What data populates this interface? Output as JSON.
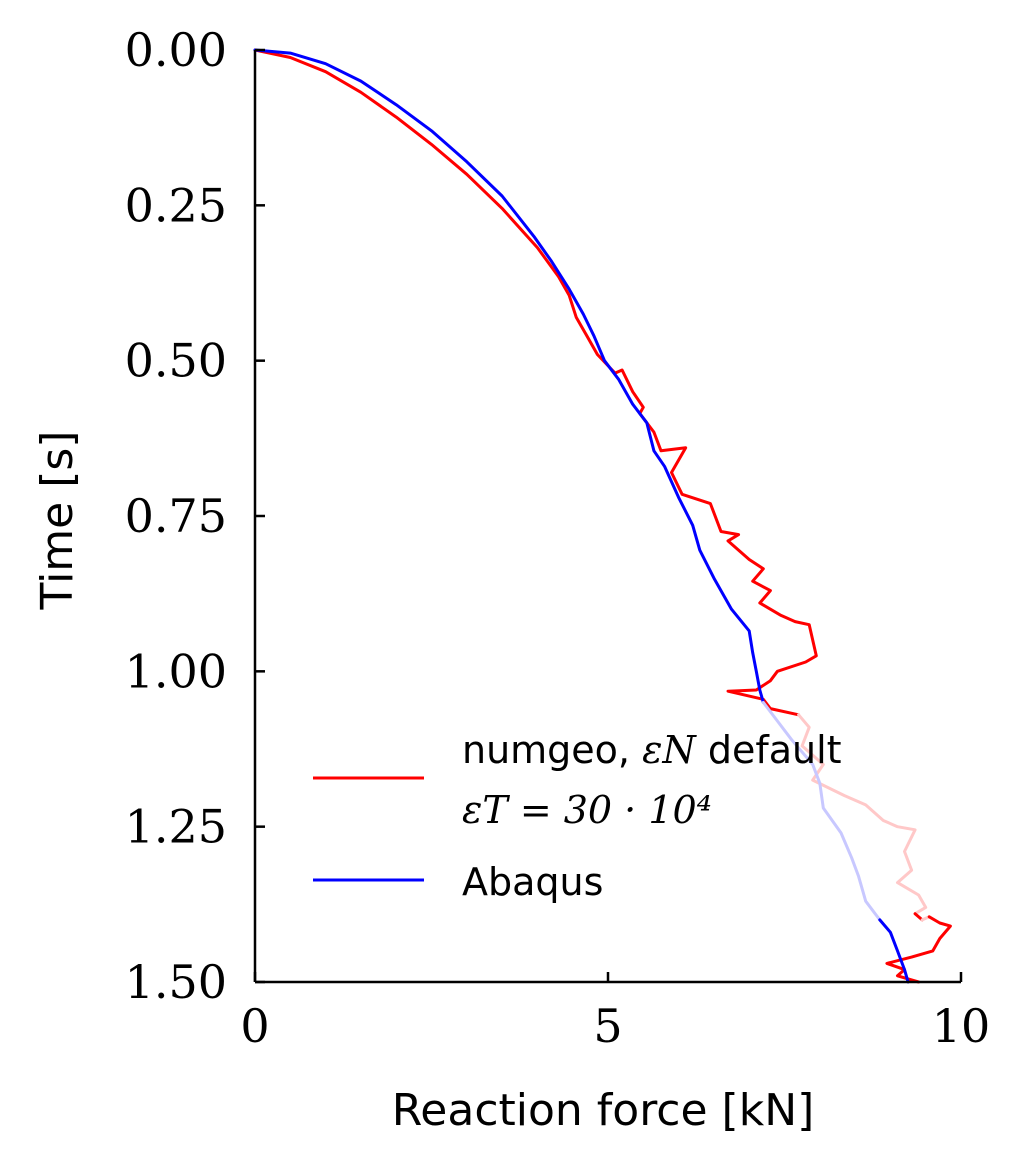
{
  "chart_data": {
    "type": "line",
    "xlabel": "Reaction force [kN]",
    "ylabel": "Time [s]",
    "xlim": [
      0,
      10
    ],
    "ylim": [
      1.5,
      0
    ],
    "y_inverted": true,
    "xticks": [
      "0",
      "5",
      "10"
    ],
    "yticks": [
      "0.00",
      "0.25",
      "0.50",
      "0.75",
      "1.00",
      "1.25",
      "1.50"
    ],
    "legend_position": "lower-right",
    "grid": false,
    "legend": {
      "numgeo_line1": "numgeo, ",
      "numgeo_eps_n": "εN",
      "numgeo_line1_end": " default",
      "numgeo_line2": "εT = 30 · 10⁴",
      "abaqus": "Abaqus"
    },
    "series": [
      {
        "name": "numgeo, εN default, εT = 30 · 10⁴",
        "color": "#ff0000",
        "faded_color": "#ffc8c8",
        "faded_range": [
          1.07,
          1.4
        ],
        "points": [
          [
            0.0,
            0.0
          ],
          [
            0.5,
            0.012
          ],
          [
            1.0,
            0.035
          ],
          [
            1.5,
            0.068
          ],
          [
            2.0,
            0.108
          ],
          [
            2.5,
            0.152
          ],
          [
            3.0,
            0.2
          ],
          [
            3.5,
            0.255
          ],
          [
            4.0,
            0.318
          ],
          [
            4.3,
            0.365
          ],
          [
            4.45,
            0.395
          ],
          [
            4.55,
            0.43
          ],
          [
            4.7,
            0.46
          ],
          [
            4.85,
            0.49
          ],
          [
            5.1,
            0.52
          ],
          [
            5.2,
            0.515
          ],
          [
            5.35,
            0.55
          ],
          [
            5.5,
            0.575
          ],
          [
            5.45,
            0.585
          ],
          [
            5.65,
            0.615
          ],
          [
            5.75,
            0.645
          ],
          [
            6.1,
            0.64
          ],
          [
            5.9,
            0.68
          ],
          [
            6.05,
            0.715
          ],
          [
            6.45,
            0.73
          ],
          [
            6.6,
            0.775
          ],
          [
            6.85,
            0.78
          ],
          [
            6.7,
            0.79
          ],
          [
            7.0,
            0.82
          ],
          [
            7.2,
            0.835
          ],
          [
            7.05,
            0.855
          ],
          [
            7.3,
            0.87
          ],
          [
            7.15,
            0.89
          ],
          [
            7.45,
            0.91
          ],
          [
            7.65,
            0.92
          ],
          [
            7.85,
            0.925
          ],
          [
            7.95,
            0.975
          ],
          [
            7.8,
            0.985
          ],
          [
            7.4,
            1.0
          ],
          [
            7.3,
            1.015
          ],
          [
            7.1,
            1.03
          ],
          [
            6.7,
            1.032
          ],
          [
            7.2,
            1.045
          ],
          [
            7.3,
            1.06
          ],
          [
            7.7,
            1.07
          ],
          [
            7.85,
            1.09
          ],
          [
            7.75,
            1.12
          ],
          [
            8.05,
            1.15
          ],
          [
            7.9,
            1.175
          ],
          [
            8.35,
            1.2
          ],
          [
            8.65,
            1.215
          ],
          [
            8.9,
            1.24
          ],
          [
            9.1,
            1.25
          ],
          [
            9.35,
            1.255
          ],
          [
            9.2,
            1.29
          ],
          [
            9.3,
            1.32
          ],
          [
            9.1,
            1.34
          ],
          [
            9.4,
            1.36
          ],
          [
            9.5,
            1.38
          ],
          [
            9.35,
            1.39
          ],
          [
            9.45,
            1.4
          ],
          [
            9.55,
            1.395
          ],
          [
            9.7,
            1.405
          ],
          [
            9.85,
            1.41
          ],
          [
            9.7,
            1.43
          ],
          [
            9.6,
            1.45
          ],
          [
            9.3,
            1.46
          ],
          [
            8.95,
            1.47
          ],
          [
            9.2,
            1.48
          ],
          [
            9.1,
            1.49
          ],
          [
            9.4,
            1.5
          ]
        ]
      },
      {
        "name": "Abaqus",
        "color": "#0000ff",
        "faded_color": "#c8c8ff",
        "faded_range": [
          1.05,
          1.42
        ],
        "points": [
          [
            0.0,
            0.0
          ],
          [
            0.5,
            0.005
          ],
          [
            1.0,
            0.022
          ],
          [
            1.5,
            0.05
          ],
          [
            2.0,
            0.088
          ],
          [
            2.5,
            0.13
          ],
          [
            3.0,
            0.18
          ],
          [
            3.5,
            0.235
          ],
          [
            3.95,
            0.3
          ],
          [
            4.2,
            0.34
          ],
          [
            4.45,
            0.385
          ],
          [
            4.65,
            0.425
          ],
          [
            4.8,
            0.46
          ],
          [
            4.95,
            0.5
          ],
          [
            5.15,
            0.53
          ],
          [
            5.35,
            0.57
          ],
          [
            5.55,
            0.6
          ],
          [
            5.65,
            0.645
          ],
          [
            5.8,
            0.67
          ],
          [
            6.0,
            0.72
          ],
          [
            6.2,
            0.765
          ],
          [
            6.3,
            0.805
          ],
          [
            6.5,
            0.85
          ],
          [
            6.75,
            0.9
          ],
          [
            7.0,
            0.935
          ],
          [
            7.05,
            0.97
          ],
          [
            7.1,
            1.0
          ],
          [
            7.15,
            1.03
          ],
          [
            7.2,
            1.05
          ],
          [
            7.4,
            1.08
          ],
          [
            7.6,
            1.11
          ],
          [
            7.9,
            1.15
          ],
          [
            8.0,
            1.18
          ],
          [
            8.05,
            1.22
          ],
          [
            8.3,
            1.26
          ],
          [
            8.45,
            1.3
          ],
          [
            8.55,
            1.33
          ],
          [
            8.65,
            1.37
          ],
          [
            8.85,
            1.4
          ],
          [
            9.0,
            1.42
          ],
          [
            9.1,
            1.45
          ],
          [
            9.2,
            1.48
          ],
          [
            9.25,
            1.5
          ]
        ]
      }
    ]
  }
}
